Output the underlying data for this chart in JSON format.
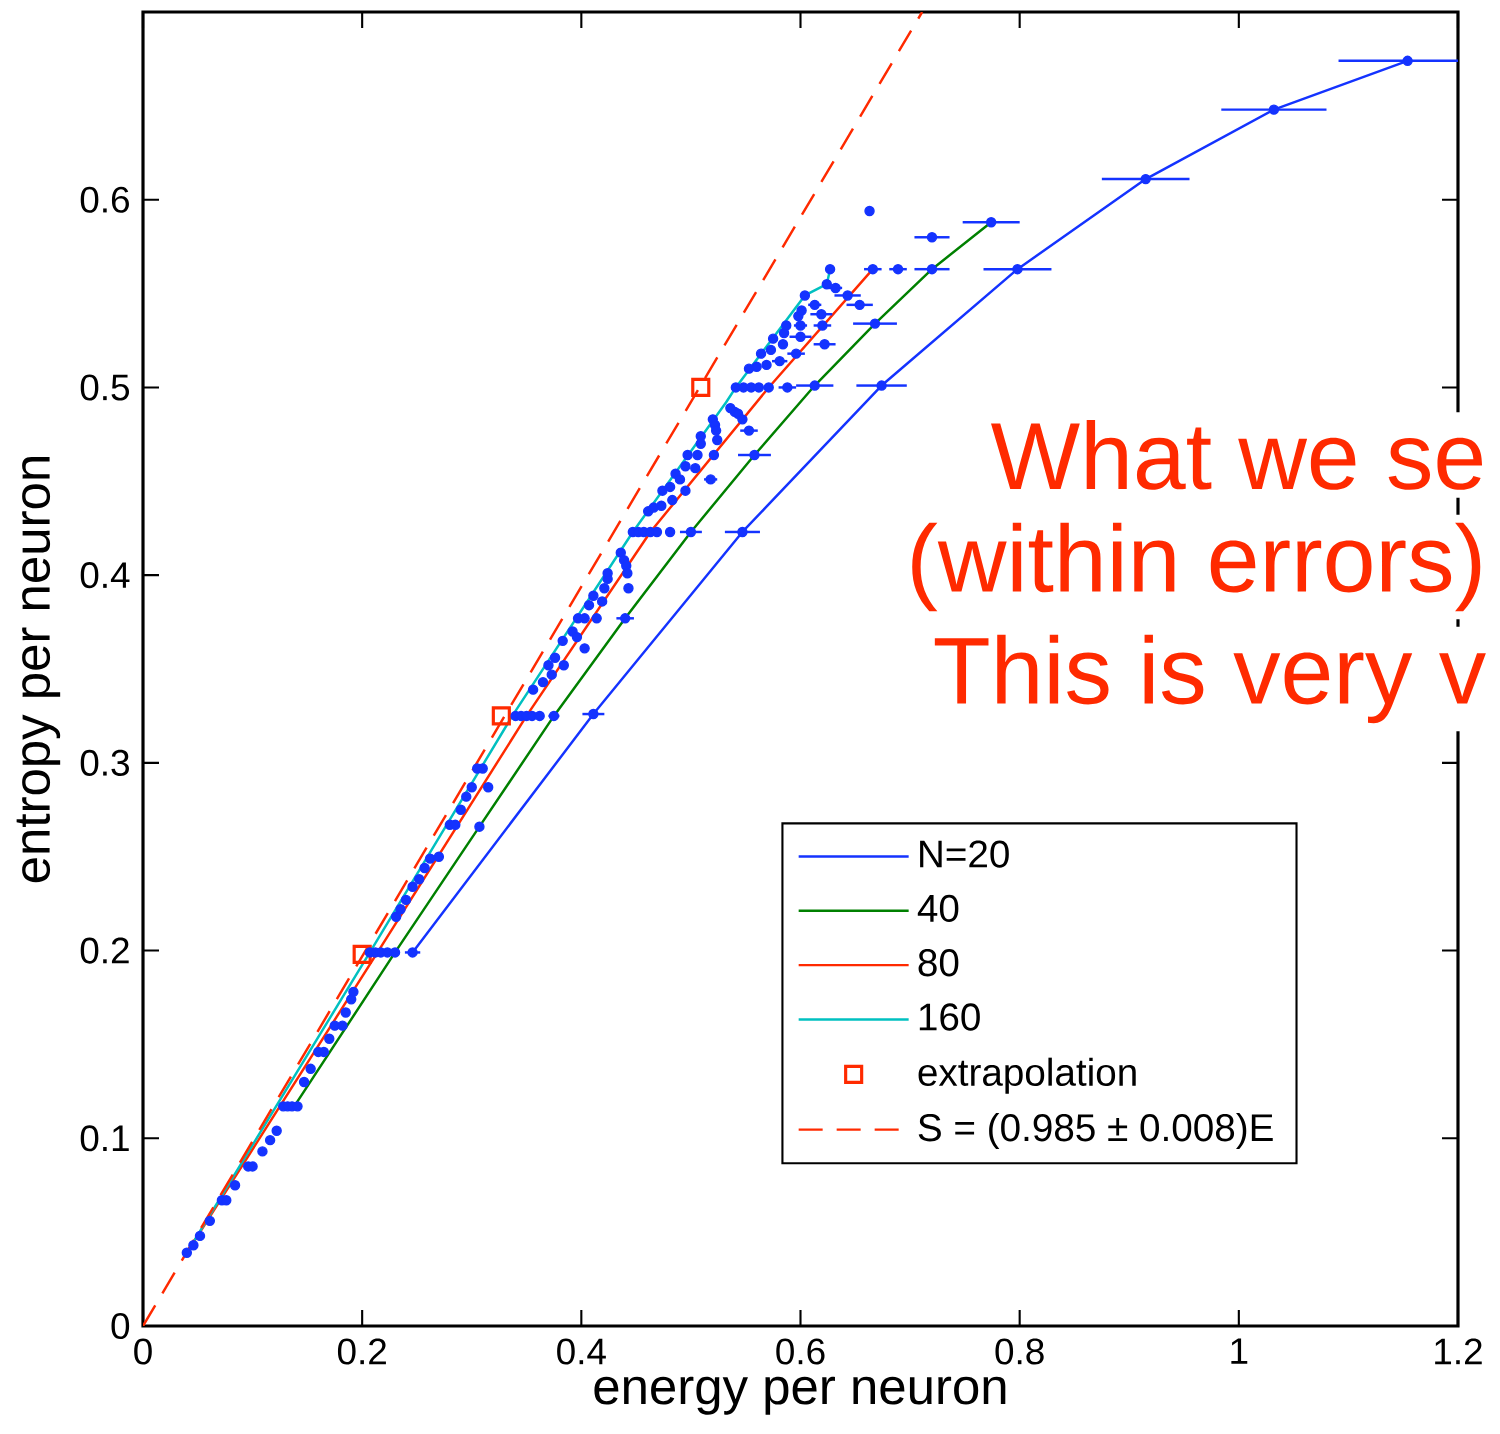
{
  "chart_data": {
    "type": "line",
    "xlabel": "energy per neuron",
    "ylabel": "entropy per neuron",
    "xlim": [
      0,
      1.2
    ],
    "ylim": [
      0,
      0.7
    ],
    "xticks": [
      0,
      0.2,
      0.4,
      0.6,
      0.8,
      1,
      1.2
    ],
    "yticks": [
      0,
      0.1,
      0.2,
      0.3,
      0.4,
      0.5,
      0.6
    ],
    "legend": "bottom right",
    "annotations": [
      "What we se",
      "(within errors)",
      "This is very v"
    ],
    "series": [
      {
        "name": "N=20",
        "color": "#1433ff",
        "marker": "none",
        "line_style": "solid",
        "x": [
          0.246,
          0.411,
          0.547,
          0.674,
          0.798,
          0.915,
          1.032,
          1.154
        ],
        "values": [
          0.199,
          0.326,
          0.423,
          0.501,
          0.563,
          0.611,
          0.648,
          0.674
        ]
      },
      {
        "name": "40",
        "color": "#008000",
        "marker": "none",
        "line_style": "solid",
        "x": [
          0.138,
          0.23,
          0.307,
          0.375,
          0.44,
          0.5,
          0.558,
          0.613,
          0.668,
          0.72,
          0.774
        ],
        "values": [
          0.117,
          0.199,
          0.266,
          0.325,
          0.377,
          0.423,
          0.464,
          0.501,
          0.534,
          0.563,
          0.588
        ]
      },
      {
        "name": "80",
        "color": "#ff2a00",
        "marker": "none",
        "line_style": "solid",
        "x": [
          0.04,
          0.214,
          0.35,
          0.463,
          0.571,
          0.666
        ],
        "values": [
          0.039,
          0.199,
          0.325,
          0.423,
          0.5,
          0.563
        ]
      },
      {
        "name": "160",
        "color": "#00c0c0",
        "marker": "none",
        "line_style": "solid",
        "x": [
          0.04,
          0.207,
          0.337,
          0.447,
          0.532,
          0.541,
          0.604,
          0.624,
          0.627
        ],
        "values": [
          0.039,
          0.199,
          0.325,
          0.423,
          0.492,
          0.5,
          0.549,
          0.555,
          0.563
        ]
      },
      {
        "name": "extrapolation",
        "type": "scatter",
        "color": "#ff2a00",
        "marker": "square",
        "x": [
          0.2,
          0.327,
          0.509
        ],
        "values": [
          0.198,
          0.325,
          0.5
        ]
      },
      {
        "name": "S = (0.985 ± 0.008)E",
        "color": "#ff2a00",
        "marker": "none",
        "line_style": "dashed",
        "x": [
          0,
          0.711
        ],
        "values": [
          0,
          0.7
        ]
      },
      {
        "type": "scatter",
        "color": "#1433ff",
        "marker": "circle",
        "x": [
          0.04,
          0.046,
          0.052,
          0.061,
          0.072,
          0.076,
          0.084,
          0.096,
          0.1,
          0.109,
          0.116,
          0.122,
          0.128,
          0.132,
          0.136,
          0.141,
          0.147,
          0.153,
          0.16,
          0.165,
          0.17,
          0.175,
          0.182,
          0.185,
          0.19,
          0.192,
          0.207,
          0.212,
          0.217,
          0.223,
          0.23,
          0.246,
          0.231,
          0.235,
          0.24,
          0.246,
          0.252,
          0.257,
          0.262,
          0.27,
          0.28,
          0.285,
          0.29,
          0.295,
          0.3,
          0.305,
          0.307,
          0.31,
          0.315,
          0.34,
          0.345,
          0.35,
          0.355,
          0.362,
          0.375,
          0.411,
          0.356,
          0.365,
          0.37,
          0.373,
          0.376,
          0.383,
          0.384,
          0.392,
          0.396,
          0.397,
          0.403,
          0.403,
          0.407,
          0.411,
          0.414,
          0.419,
          0.421,
          0.424,
          0.424,
          0.436,
          0.439,
          0.441,
          0.442,
          0.443,
          0.44,
          0.447,
          0.452,
          0.457,
          0.463,
          0.469,
          0.481,
          0.5,
          0.547,
          0.461,
          0.466,
          0.473,
          0.474,
          0.481,
          0.483,
          0.486,
          0.49,
          0.495,
          0.495,
          0.497,
          0.504,
          0.506,
          0.509,
          0.509,
          0.521,
          0.518,
          0.52,
          0.522,
          0.523,
          0.524,
          0.536,
          0.54,
          0.543,
          0.547,
          0.553,
          0.558,
          0.541,
          0.548,
          0.555,
          0.562,
          0.571,
          0.588,
          0.613,
          0.674,
          0.553,
          0.56,
          0.564,
          0.569,
          0.573,
          0.581,
          0.575,
          0.584,
          0.596,
          0.585,
          0.587,
          0.6,
          0.6,
          0.62,
          0.622,
          0.598,
          0.601,
          0.604,
          0.613,
          0.619,
          0.624,
          0.632,
          0.627,
          0.643,
          0.654,
          0.668,
          0.666,
          0.689,
          0.72,
          0.798,
          0.663,
          0.72,
          0.774,
          0.915,
          1.032,
          1.154
        ],
        "values": [
          0.039,
          0.043,
          0.048,
          0.056,
          0.067,
          0.067,
          0.075,
          0.085,
          0.085,
          0.093,
          0.099,
          0.104,
          0.117,
          0.117,
          0.117,
          0.117,
          0.13,
          0.137,
          0.146,
          0.146,
          0.153,
          0.16,
          0.16,
          0.167,
          0.174,
          0.178,
          0.199,
          0.199,
          0.199,
          0.199,
          0.199,
          0.199,
          0.218,
          0.222,
          0.227,
          0.234,
          0.238,
          0.244,
          0.249,
          0.25,
          0.267,
          0.267,
          0.275,
          0.282,
          0.287,
          0.297,
          0.266,
          0.297,
          0.287,
          0.325,
          0.325,
          0.325,
          0.325,
          0.325,
          0.325,
          0.326,
          0.339,
          0.343,
          0.352,
          0.347,
          0.356,
          0.365,
          0.352,
          0.37,
          0.367,
          0.377,
          0.377,
          0.361,
          0.384,
          0.389,
          0.377,
          0.386,
          0.393,
          0.398,
          0.401,
          0.412,
          0.408,
          0.405,
          0.401,
          0.393,
          0.377,
          0.423,
          0.423,
          0.423,
          0.423,
          0.423,
          0.423,
          0.423,
          0.423,
          0.434,
          0.436,
          0.437,
          0.445,
          0.447,
          0.44,
          0.454,
          0.451,
          0.445,
          0.458,
          0.464,
          0.457,
          0.464,
          0.47,
          0.474,
          0.464,
          0.451,
          0.483,
          0.48,
          0.477,
          0.472,
          0.489,
          0.487,
          0.486,
          0.483,
          0.477,
          0.464,
          0.5,
          0.5,
          0.5,
          0.5,
          0.5,
          0.5,
          0.501,
          0.501,
          0.51,
          0.511,
          0.518,
          0.512,
          0.52,
          0.514,
          0.526,
          0.523,
          0.518,
          0.529,
          0.533,
          0.527,
          0.533,
          0.533,
          0.523,
          0.538,
          0.541,
          0.549,
          0.544,
          0.539,
          0.555,
          0.553,
          0.563,
          0.549,
          0.544,
          0.534,
          0.563,
          0.563,
          0.563,
          0.563,
          0.594,
          0.58,
          0.588,
          0.611,
          0.648,
          0.674
        ],
        "xerrors": [
          null,
          null,
          null,
          null,
          null,
          null,
          null,
          null,
          null,
          null,
          null,
          null,
          null,
          null,
          null,
          null,
          null,
          null,
          null,
          null,
          null,
          null,
          null,
          null,
          null,
          null,
          null,
          null,
          null,
          null,
          0.004,
          0.007,
          null,
          null,
          null,
          null,
          null,
          null,
          null,
          null,
          null,
          null,
          null,
          null,
          null,
          null,
          null,
          null,
          null,
          null,
          null,
          null,
          null,
          null,
          0.005,
          0.01,
          null,
          null,
          null,
          null,
          null,
          null,
          null,
          null,
          null,
          null,
          null,
          null,
          null,
          null,
          null,
          null,
          null,
          null,
          null,
          null,
          null,
          null,
          null,
          null,
          0.008,
          null,
          null,
          null,
          null,
          null,
          0.004,
          0.01,
          0.016,
          null,
          null,
          null,
          null,
          null,
          null,
          null,
          null,
          null,
          null,
          null,
          null,
          null,
          null,
          null,
          null,
          0.006,
          null,
          null,
          null,
          null,
          null,
          null,
          null,
          null,
          0.008,
          0.015,
          null,
          null,
          null,
          null,
          null,
          0.008,
          0.017,
          0.023,
          null,
          null,
          null,
          null,
          null,
          0.007,
          null,
          null,
          0.008,
          null,
          null,
          0.01,
          0.006,
          0.008,
          0.01,
          null,
          null,
          null,
          0.006,
          0.01,
          null,
          0.006,
          null,
          0.012,
          0.012,
          0.02,
          0.008,
          0.008,
          0.016,
          0.031,
          null,
          0.016,
          0.026,
          0.04,
          0.048,
          0.063
        ]
      }
    ]
  }
}
